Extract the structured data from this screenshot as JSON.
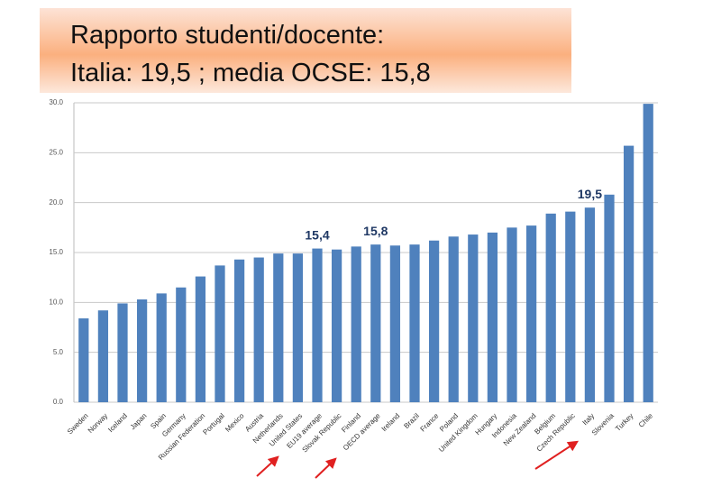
{
  "chart_data": {
    "type": "bar",
    "title": [
      "Rapporto studenti/docente:",
      "Italia: 19,5 ; media OCSE: 15,8"
    ],
    "categories": [
      "Sweden",
      "Norway",
      "Iceland",
      "Japan",
      "Spain",
      "Germany",
      "Russian Federation",
      "Portugal",
      "Mexico",
      "Austria",
      "Netherlands",
      "United States",
      "EU19 average",
      "Slovak Republic",
      "Finland",
      "OECD average",
      "Ireland",
      "Brazil",
      "France",
      "Poland",
      "United Kingdom",
      "Hungary",
      "Indonesia",
      "New Zealand",
      "Belgium",
      "Czech Republic",
      "Italy",
      "Slovenia",
      "Turkey",
      "Chile"
    ],
    "values": [
      8.4,
      9.2,
      9.9,
      10.3,
      10.9,
      11.5,
      12.6,
      13.7,
      14.3,
      14.5,
      14.9,
      14.9,
      15.4,
      15.3,
      15.6,
      15.8,
      15.7,
      15.8,
      16.2,
      16.6,
      16.8,
      17.0,
      17.5,
      17.7,
      18.9,
      19.1,
      19.5,
      20.8,
      25.7,
      29.9
    ],
    "value_labels": [
      null,
      null,
      null,
      null,
      null,
      null,
      null,
      null,
      null,
      null,
      null,
      null,
      "15,4",
      null,
      null,
      "15,8",
      null,
      null,
      null,
      null,
      null,
      null,
      null,
      null,
      null,
      null,
      "19,5",
      null,
      null,
      null
    ],
    "color": "#4f81bd",
    "ylim": [
      0,
      30
    ],
    "yticks": [
      {
        "value": 0,
        "label": "0.0"
      },
      {
        "value": 5,
        "label": "5.0"
      },
      {
        "value": 10,
        "label": "10.0"
      },
      {
        "value": 15,
        "label": "15.0"
      },
      {
        "value": 20,
        "label": "20.0"
      },
      {
        "value": 25,
        "label": "25.0"
      },
      {
        "value": 30,
        "label": "30.0"
      }
    ],
    "grid": true
  }
}
